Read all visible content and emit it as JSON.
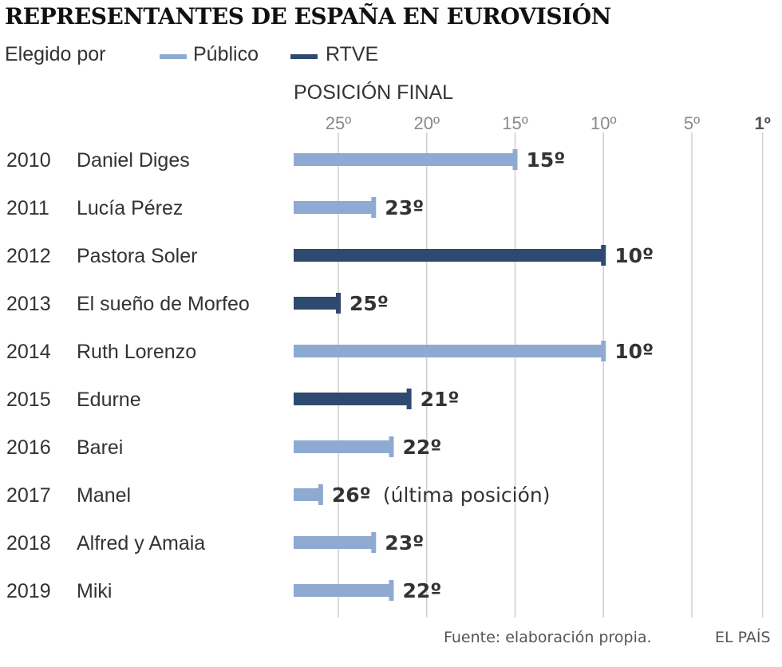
{
  "title": "REPRESENTANTES DE ESPAÑA EN EUROVISIÓN",
  "legend": {
    "label": "Elegido por",
    "items": [
      {
        "name": "Público",
        "color": "#8eaad0"
      },
      {
        "name": "RTVE",
        "color": "#2e4a6e"
      }
    ]
  },
  "axis_title": "POSICIÓN FINAL",
  "source": "Fuente: elaboración propia.",
  "brand": "EL PAÍS",
  "chart_data": {
    "type": "bar",
    "orientation": "horizontal",
    "xlabel": "POSICIÓN FINAL",
    "xlim": [
      27,
      1
    ],
    "x_ticks": [
      {
        "value": 25,
        "label": "25º"
      },
      {
        "value": 20,
        "label": "20º"
      },
      {
        "value": 15,
        "label": "15º"
      },
      {
        "value": 10,
        "label": "10º"
      },
      {
        "value": 5,
        "label": "5º"
      },
      {
        "value": 1,
        "label": "1º"
      }
    ],
    "grid": true,
    "legend_position": "top-left",
    "rows": [
      {
        "year": "2010",
        "artist": "Daniel Diges",
        "position": 15,
        "label": "15º",
        "note": "",
        "chosen_by": "Público"
      },
      {
        "year": "2011",
        "artist": "Lucía Pérez",
        "position": 23,
        "label": "23º",
        "note": "",
        "chosen_by": "Público"
      },
      {
        "year": "2012",
        "artist": "Pastora Soler",
        "position": 10,
        "label": "10º",
        "note": "",
        "chosen_by": "RTVE"
      },
      {
        "year": "2013",
        "artist": "El sueño de Morfeo",
        "position": 25,
        "label": "25º",
        "note": "",
        "chosen_by": "RTVE"
      },
      {
        "year": "2014",
        "artist": "Ruth Lorenzo",
        "position": 10,
        "label": "10º",
        "note": "",
        "chosen_by": "Público"
      },
      {
        "year": "2015",
        "artist": "Edurne",
        "position": 21,
        "label": "21º",
        "note": "",
        "chosen_by": "RTVE"
      },
      {
        "year": "2016",
        "artist": "Barei",
        "position": 22,
        "label": "22º",
        "note": "",
        "chosen_by": "Público"
      },
      {
        "year": "2017",
        "artist": "Manel",
        "position": 26,
        "label": "26º",
        "note": "(última posición)",
        "chosen_by": "Público"
      },
      {
        "year": "2018",
        "artist": "Alfred y Amaia",
        "position": 23,
        "label": "23º",
        "note": "",
        "chosen_by": "Público"
      },
      {
        "year": "2019",
        "artist": "Miki",
        "position": 22,
        "label": "22º",
        "note": "",
        "chosen_by": "Público"
      }
    ]
  }
}
